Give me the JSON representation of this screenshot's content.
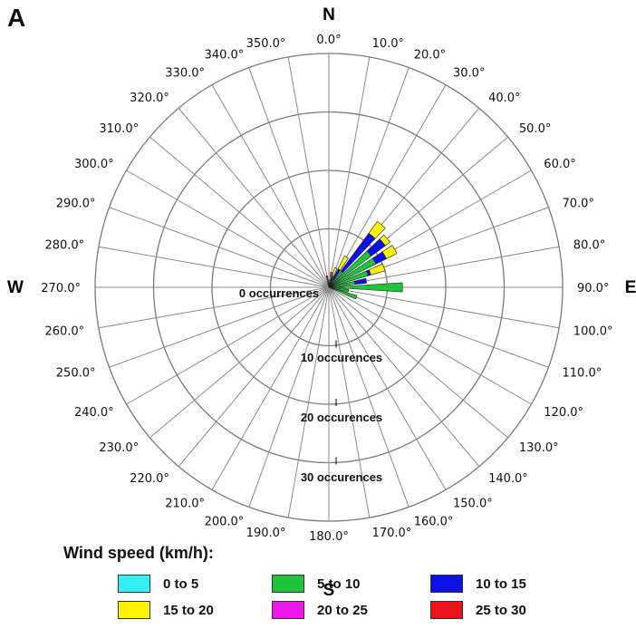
{
  "panel_label": "A",
  "legend_title": "Wind speed (km/h):",
  "chart_data": {
    "type": "polar-stacked-bar",
    "title": "",
    "compass": {
      "north": "N",
      "east": "E",
      "south": "S",
      "west": "W"
    },
    "angle_labels": [
      "0.0°",
      "10.0°",
      "20.0°",
      "30.0°",
      "40.0°",
      "50.0°",
      "60.0°",
      "70.0°",
      "80.0°",
      "90.0°",
      "100.0°",
      "110.0°",
      "120.0°",
      "130.0°",
      "140.0°",
      "150.0°",
      "160.0°",
      "170.0°",
      "180.0°",
      "190.0°",
      "200.0°",
      "210.0°",
      "220.0°",
      "230.0°",
      "240.0°",
      "250.0°",
      "260.0°",
      "270.0°",
      "280.0°",
      "290.0°",
      "300.0°",
      "310.0°",
      "320.0°",
      "330.0°",
      "340.0°",
      "350.0°"
    ],
    "radial_labels": [
      "0 occurrences",
      "10 occurences",
      "20 occurences",
      "30 occurences"
    ],
    "radial_ticks": [
      0,
      10,
      20,
      30
    ],
    "r_max": 40,
    "directions": [
      0,
      10,
      20,
      30,
      40,
      50,
      60,
      70,
      80,
      90,
      100,
      110,
      120,
      130,
      140,
      150,
      160,
      170,
      180,
      190,
      200,
      210,
      220,
      230,
      240,
      250,
      260,
      270,
      280,
      290,
      300,
      310,
      320,
      330,
      340,
      350
    ],
    "series": [
      {
        "name": "0 to 5",
        "color": "#33f0f0",
        "values": [
          0,
          0,
          0,
          0,
          0,
          0,
          0,
          0,
          0,
          0.6,
          0.4,
          0,
          0,
          0,
          0,
          0,
          0,
          0,
          0,
          0,
          0,
          0,
          0,
          0,
          0,
          0,
          0,
          0,
          0,
          0,
          0,
          0,
          0,
          0,
          0,
          0
        ]
      },
      {
        "name": "5 to 10",
        "color": "#1ec43a",
        "values": [
          0,
          0.3,
          0.5,
          1.5,
          3.5,
          9,
          9,
          7,
          4.5,
          12,
          3,
          5,
          0,
          0,
          0,
          0,
          0,
          0,
          0,
          0,
          0,
          0,
          0,
          0,
          0,
          0,
          0,
          0,
          0,
          0,
          0,
          0,
          0,
          0,
          0,
          0
        ]
      },
      {
        "name": "10 to 15",
        "color": "#0a10e6",
        "values": [
          0,
          1,
          1.5,
          2,
          8,
          3,
          2,
          0.5,
          2,
          0,
          0,
          0,
          0,
          0,
          0,
          0,
          0,
          0,
          0,
          0,
          0,
          0,
          0,
          0,
          0,
          0,
          0,
          0,
          0,
          0,
          0,
          0,
          0,
          0,
          0,
          0
        ]
      },
      {
        "name": "15 to 20",
        "color": "#fff300",
        "values": [
          0.7,
          0.7,
          1.5,
          2.5,
          2.5,
          1,
          2,
          2.5,
          0,
          0,
          0,
          0,
          0,
          0,
          0,
          0,
          0,
          0,
          0,
          0,
          0,
          0,
          0,
          0,
          0,
          0,
          0,
          0,
          0,
          0,
          0,
          0,
          0,
          0,
          0,
          0
        ]
      },
      {
        "name": "20 to 25",
        "color": "#ee16ea",
        "values": [
          0,
          0.6,
          0,
          0,
          0,
          0,
          0,
          0,
          0,
          0,
          0,
          0,
          0,
          0,
          0,
          0,
          0,
          0,
          0,
          0,
          0,
          0,
          0,
          0,
          0,
          0,
          0,
          0,
          0,
          0,
          0,
          0,
          0,
          0,
          0,
          0.9
        ]
      },
      {
        "name": "25 to 30",
        "color": "#e8141a",
        "values": [
          0,
          0,
          0,
          0,
          0,
          0,
          0,
          0,
          0,
          0,
          0,
          0,
          0,
          0,
          0,
          0,
          0,
          0,
          0,
          0,
          0,
          0,
          0,
          0,
          0,
          0,
          0,
          0,
          0,
          0,
          0,
          0,
          0,
          0,
          0,
          1.1
        ]
      }
    ]
  }
}
